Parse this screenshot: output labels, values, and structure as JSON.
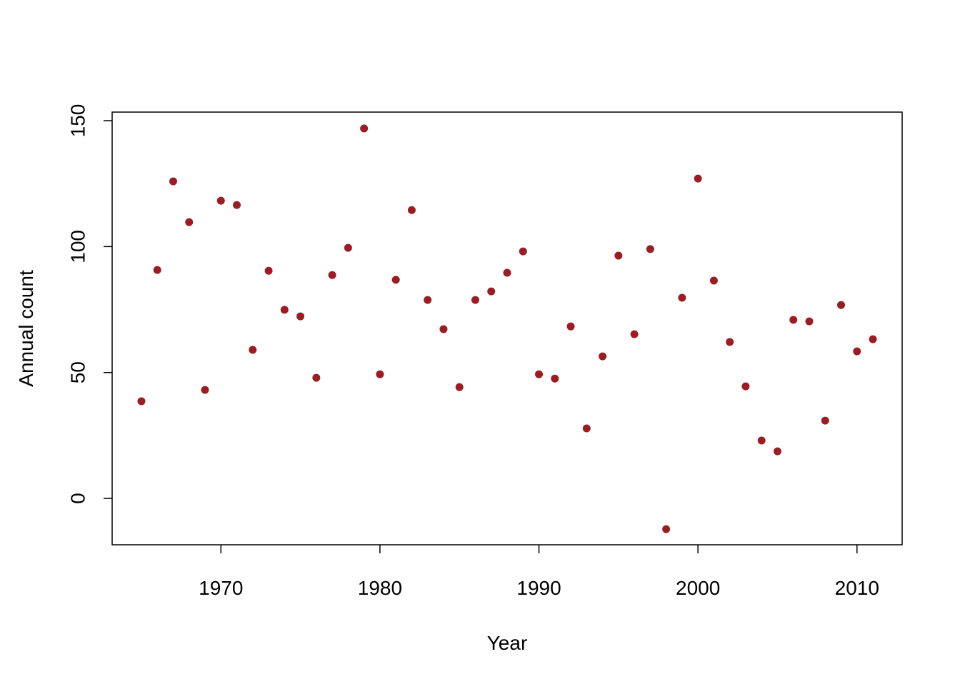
{
  "chart_data": {
    "type": "scatter",
    "x_label": "Year",
    "y_label": "Annual count",
    "x": [
      1965,
      1966,
      1967,
      1968,
      1969,
      1970,
      1971,
      1972,
      1973,
      1974,
      1975,
      1976,
      1977,
      1978,
      1979,
      1980,
      1981,
      1982,
      1983,
      1984,
      1985,
      1986,
      1987,
      1988,
      1989,
      1990,
      1991,
      1992,
      1993,
      1994,
      1995,
      1996,
      1997,
      1998,
      1999,
      2000,
      2001,
      2002,
      2003,
      2004,
      2005,
      2006,
      2007,
      2008,
      2009,
      2010,
      2011
    ],
    "values": [
      38.6,
      90.7,
      125.9,
      109.7,
      43.1,
      118.2,
      116.5,
      59.0,
      90.4,
      74.9,
      72.3,
      47.9,
      88.7,
      99.5,
      146.9,
      49.3,
      86.8,
      114.5,
      78.8,
      67.2,
      44.2,
      78.8,
      82.2,
      89.6,
      98.1,
      49.3,
      47.6,
      68.3,
      27.8,
      56.4,
      96.4,
      65.2,
      99.0,
      -12.2,
      79.7,
      127.0,
      86.5,
      62.1,
      44.5,
      23.0,
      18.7,
      70.9,
      70.3,
      30.9,
      76.8,
      58.4,
      63.2
    ],
    "color": "#9b1c23",
    "xlim": [
      1963.16,
      2012.84
    ],
    "xticks": [
      1970,
      1980,
      1990,
      2000,
      2010
    ],
    "ylim": [
      -18.4,
      153.4
    ],
    "yticks": [
      0,
      50,
      100,
      150
    ],
    "grid": false
  }
}
